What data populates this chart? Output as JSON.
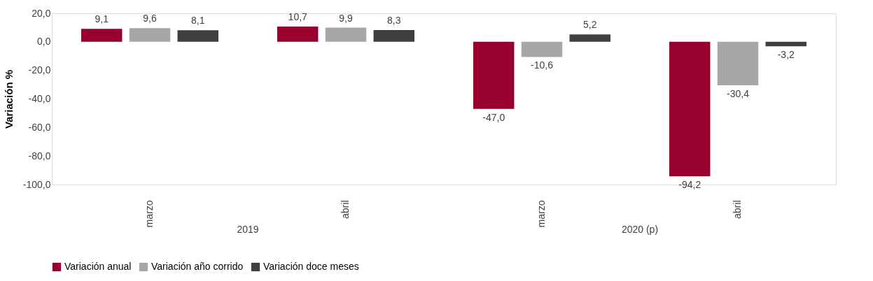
{
  "chart_data": {
    "type": "bar",
    "ylabel": "Variación %",
    "categories": [
      "marzo",
      "abril",
      "marzo",
      "abril"
    ],
    "annotations": [
      "2019",
      "2020 (p)"
    ],
    "series": [
      {
        "name": "Variación anual",
        "color": "#98002e",
        "values": [
          9.1,
          10.7,
          -47.0,
          -94.2
        ],
        "value_labels": [
          "9,1",
          "10,7",
          "-47,0",
          "-94,2"
        ]
      },
      {
        "name": "Variación año corrido",
        "color": "#a6a6a6",
        "values": [
          9.6,
          9.9,
          -10.6,
          -30.4
        ],
        "value_labels": [
          "9,6",
          "9,9",
          "-10,6",
          "-30,4"
        ]
      },
      {
        "name": "Variación doce meses",
        "color": "#404040",
        "values": [
          8.1,
          8.3,
          5.2,
          -3.2
        ],
        "value_labels": [
          "8,1",
          "8,3",
          "5,2",
          "-3,2"
        ]
      }
    ],
    "ylim": [
      -100,
      20
    ],
    "yticks": [
      {
        "value": -100,
        "label": "-100,0"
      },
      {
        "value": -80,
        "label": "-80,0"
      },
      {
        "value": -60,
        "label": "-60,0"
      },
      {
        "value": -40,
        "label": "-40,0"
      },
      {
        "value": -20,
        "label": "-20,0"
      },
      {
        "value": 0,
        "label": "0,0"
      },
      {
        "value": 20,
        "label": "20,0"
      }
    ],
    "grid": false,
    "legend": "bottom"
  }
}
